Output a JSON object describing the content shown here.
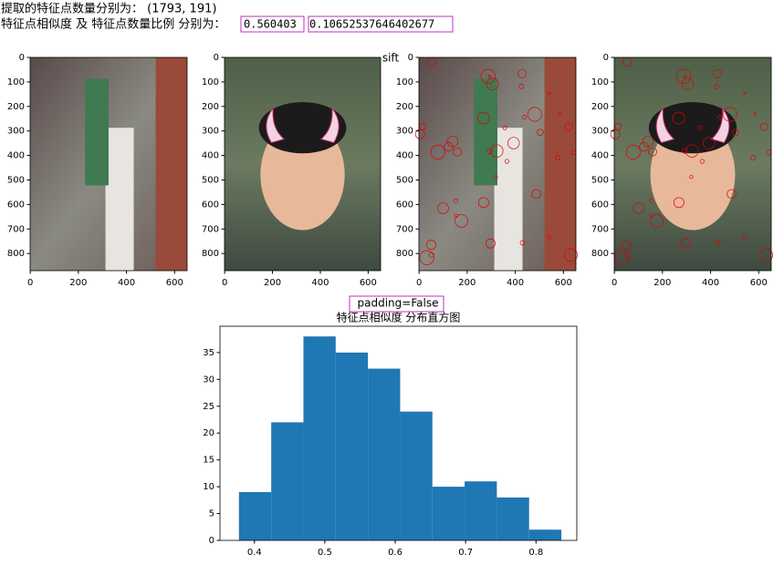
{
  "output": {
    "line1": "提取的特征点数量分别为： (1793, 191)",
    "line2": "特征点相似度 及 特征点数量比例 分别为：",
    "similarity": "0.560403",
    "ratio": "0.10652537646402677",
    "note": "padding=False"
  },
  "figure": {
    "title": "sift"
  },
  "chart_data": [
    {
      "type": "image",
      "xlim": [
        -0.5,
        652
      ],
      "ylim": [
        870,
        0
      ],
      "xticks": [
        0,
        200,
        400,
        600
      ],
      "yticks": [
        0,
        100,
        200,
        300,
        400,
        500,
        600,
        700,
        800
      ]
    },
    {
      "type": "image",
      "xlim": [
        -0.5,
        652
      ],
      "ylim": [
        870,
        0
      ],
      "xticks": [
        0,
        200,
        400,
        600
      ],
      "yticks": [
        0,
        100,
        200,
        300,
        400,
        500,
        600,
        700,
        800
      ]
    },
    {
      "type": "image",
      "xlim": [
        -0.5,
        652
      ],
      "ylim": [
        870,
        0
      ],
      "xticks": [
        0,
        200,
        400,
        600
      ],
      "yticks": [
        0,
        100,
        200,
        300,
        400,
        500,
        600,
        700,
        800
      ]
    },
    {
      "type": "image",
      "xlim": [
        -0.5,
        652
      ],
      "ylim": [
        870,
        0
      ],
      "xticks": [
        0,
        200,
        400,
        600
      ],
      "yticks": [
        0,
        100,
        200,
        300,
        400,
        500,
        600,
        700,
        800
      ]
    },
    {
      "type": "histogram",
      "title": "特征点相似度 分布直方图",
      "color": "#1f77b4",
      "bins": [
        0.378,
        0.4238,
        0.4696,
        0.5154,
        0.5612,
        0.607,
        0.6528,
        0.6986,
        0.7444,
        0.7902,
        0.836
      ],
      "counts": [
        9,
        22,
        38,
        35,
        32,
        24,
        10,
        11,
        8,
        2
      ],
      "xlim": [
        0.351,
        0.858
      ],
      "ylim": [
        0,
        39.9
      ],
      "xticks": [
        0.4,
        0.5,
        0.6,
        0.7,
        0.8
      ],
      "yticks": [
        0,
        5,
        10,
        15,
        20,
        25,
        30,
        35
      ]
    }
  ]
}
